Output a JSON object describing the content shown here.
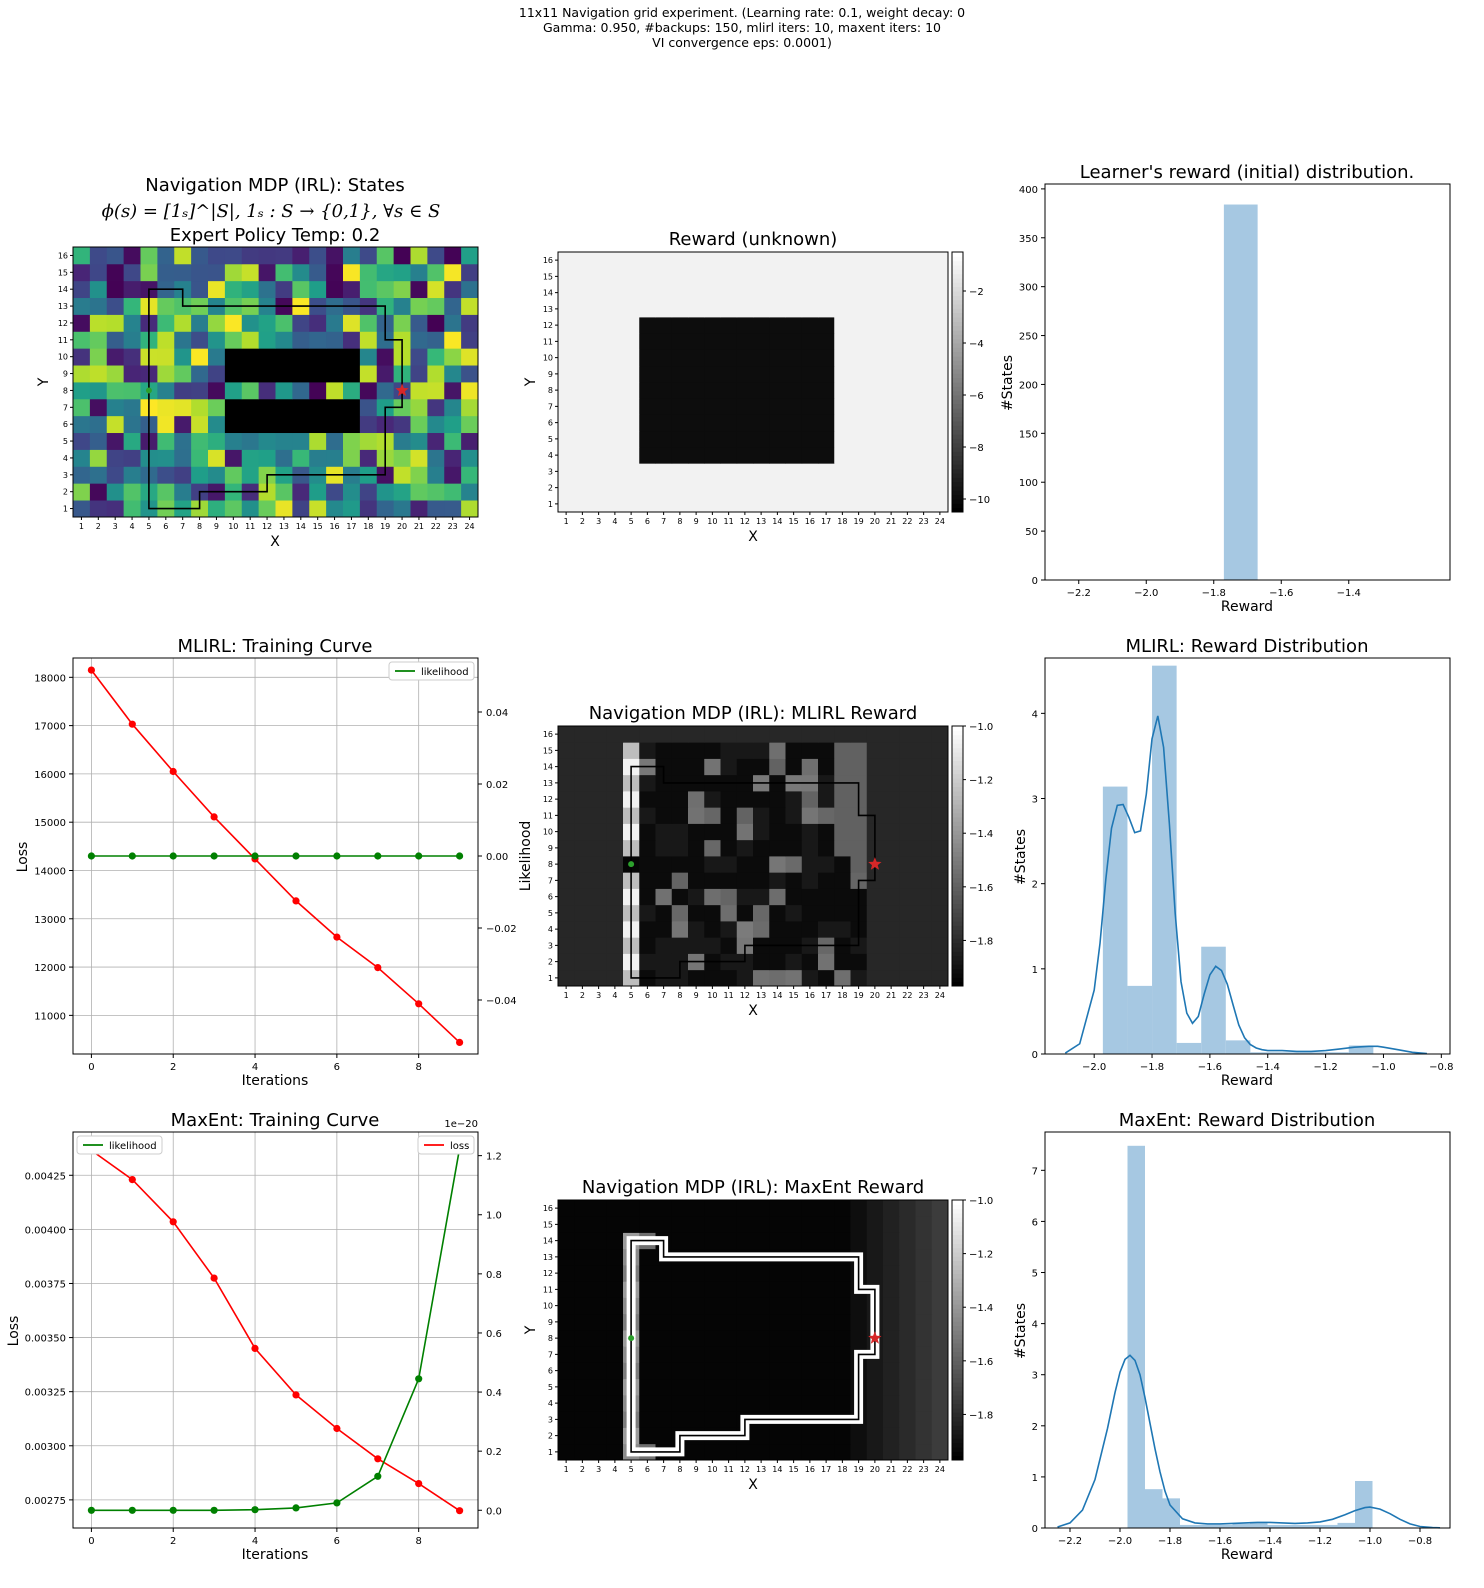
{
  "suptitle": {
    "line1": "11x11 Navigation grid experiment. (Learning rate: 0.1, weight decay: 0",
    "line2": "Gamma: 0.950, #backups: 150, mlirl iters: 10, maxent iters: 10",
    "line3": "VI convergence eps: 0.0001)"
  },
  "colors": {
    "hist": "#a6c8e2",
    "kde": "#1f77b4",
    "loss": "#ff0000",
    "likelihood": "#008000",
    "grid_line": "#b0b0b0",
    "agent": "#2ca02c",
    "goal": "#d62728"
  },
  "chart_data": [
    {
      "id": "states",
      "type": "heatmap",
      "title_lines": [
        "Navigation MDP (IRL): States",
        "ϕ(s) = [1ₛ]^|S|, 1ₛ : S → {0,1}, ∀s ∈ S",
        "Expert Policy Temp: 0.2"
      ],
      "xlabel": "X",
      "ylabel": "Y",
      "x_ticks": [
        1,
        2,
        3,
        4,
        5,
        6,
        7,
        8,
        9,
        10,
        11,
        12,
        13,
        14,
        15,
        16,
        17,
        18,
        19,
        20,
        21,
        22,
        23,
        24
      ],
      "y_ticks": [
        1,
        2,
        3,
        4,
        5,
        6,
        7,
        8,
        9,
        10,
        11,
        12,
        13,
        14,
        15,
        16
      ],
      "colormap": "viridis",
      "blocked_regions": [
        {
          "x": [
            10,
            17
          ],
          "y": [
            9,
            10
          ]
        },
        {
          "x": [
            10,
            17
          ],
          "y": [
            6,
            7
          ]
        }
      ],
      "path": [
        [
          5,
          8
        ],
        [
          5,
          14
        ],
        [
          7,
          14
        ],
        [
          7,
          13
        ],
        [
          19,
          13
        ],
        [
          19,
          11
        ],
        [
          20,
          11
        ],
        [
          20,
          8
        ]
      ],
      "path2": [
        [
          5,
          8
        ],
        [
          5,
          1
        ],
        [
          8,
          1
        ],
        [
          8,
          2
        ],
        [
          12,
          2
        ],
        [
          12,
          3
        ],
        [
          19,
          3
        ],
        [
          19,
          7
        ],
        [
          20,
          7
        ],
        [
          20,
          8
        ]
      ],
      "agent": [
        5,
        8
      ],
      "goal": [
        20,
        8
      ]
    },
    {
      "id": "reward_unknown",
      "type": "heatmap",
      "title": "Reward (unknown)",
      "xlabel": "X",
      "ylabel": "Y",
      "colormap": "gray",
      "colorbar_ticks": [
        -2,
        -4,
        -6,
        -8,
        -10
      ],
      "vmin": -10.5,
      "vmax": -0.5,
      "low_region": {
        "x": [
          6,
          17
        ],
        "y": [
          4,
          12
        ],
        "value": -10
      },
      "background_value": -1
    },
    {
      "id": "initial_hist",
      "type": "bar",
      "title": "Learner's reward (initial) distribution.",
      "xlabel": "Reward",
      "ylabel": "#States",
      "xlim": [
        -2.3,
        -1.1
      ],
      "ylim": [
        0,
        405
      ],
      "x_ticks": [
        -2.2,
        -2.0,
        -1.8,
        -1.6,
        -1.4
      ],
      "y_ticks": [
        0,
        50,
        100,
        150,
        200,
        250,
        300,
        350,
        400
      ],
      "bins": [
        [
          -1.77,
          -1.67,
          384
        ]
      ]
    },
    {
      "id": "mlirl_curve",
      "type": "line",
      "title": "MLIRL: Training Curve",
      "xlabel": "Iterations",
      "ylabel": "Loss",
      "ylabel_right": "Likelihood",
      "x": [
        0,
        1,
        2,
        3,
        4,
        5,
        6,
        7,
        8,
        9
      ],
      "xlim": [
        -0.45,
        9.45
      ],
      "ylim": [
        10200,
        18400
      ],
      "ylim_right": [
        -0.055,
        0.055
      ],
      "x_ticks": [
        0,
        2,
        4,
        6,
        8
      ],
      "y_ticks": [
        11000,
        12000,
        13000,
        14000,
        15000,
        16000,
        17000,
        18000
      ],
      "y_ticks_right": [
        -0.04,
        -0.02,
        0.0,
        0.02,
        0.04
      ],
      "y_tick_labels_right": [
        "−0.04",
        "−0.02",
        "0.00",
        "0.02",
        "0.04"
      ],
      "legend": [
        "likelihood"
      ],
      "series": [
        {
          "name": "loss",
          "axis": "left",
          "color": "#ff0000",
          "values": [
            18150,
            17030,
            16050,
            15110,
            14240,
            13370,
            12620,
            11990,
            11240,
            10440
          ]
        },
        {
          "name": "likelihood",
          "axis": "right",
          "color": "#008000",
          "values": [
            0,
            0,
            0,
            0,
            0,
            0,
            0,
            0,
            0,
            0
          ]
        }
      ]
    },
    {
      "id": "mlirl_reward",
      "type": "heatmap",
      "title": "Navigation MDP (IRL): MLIRL Reward",
      "xlabel": "X",
      "ylabel": "Likelihood",
      "colormap": "gray",
      "colorbar_ticks": [
        -1.0,
        -1.2,
        -1.4,
        -1.6,
        -1.8
      ],
      "colorbar_tick_labels": [
        "−1.0",
        "−1.2",
        "−1.4",
        "−1.6",
        "−1.8"
      ],
      "vmin": -1.97,
      "vmax": -1.0,
      "background_value": -1.82,
      "path": [
        [
          5,
          8
        ],
        [
          5,
          14
        ],
        [
          7,
          14
        ],
        [
          7,
          13
        ],
        [
          19,
          13
        ],
        [
          19,
          11
        ],
        [
          20,
          11
        ],
        [
          20,
          8
        ]
      ],
      "path2": [
        [
          5,
          8
        ],
        [
          5,
          1
        ],
        [
          8,
          1
        ],
        [
          8,
          2
        ],
        [
          12,
          2
        ],
        [
          12,
          3
        ],
        [
          19,
          3
        ],
        [
          19,
          7
        ],
        [
          20,
          7
        ],
        [
          20,
          8
        ]
      ],
      "agent": [
        5,
        8
      ],
      "goal": [
        20,
        8
      ]
    },
    {
      "id": "mlirl_hist",
      "type": "bar",
      "title": "MLIRL: Reward Distribution",
      "xlabel": "Reward",
      "ylabel": "#States",
      "xlim": [
        -2.17,
        -0.77
      ],
      "ylim": [
        0,
        4.65
      ],
      "x_ticks": [
        -2.0,
        -1.8,
        -1.6,
        -1.4,
        -1.2,
        -1.0,
        -0.8
      ],
      "x_tick_labels": [
        "−2.0",
        "−1.8",
        "−1.6",
        "−1.4",
        "−1.2",
        "−1.0",
        "−0.8"
      ],
      "y_ticks": [
        0,
        1,
        2,
        3,
        4
      ],
      "bins": [
        [
          -1.97,
          -1.885,
          3.14
        ],
        [
          -1.885,
          -1.8,
          0.8
        ],
        [
          -1.8,
          -1.715,
          4.56
        ],
        [
          -1.715,
          -1.63,
          0.13
        ],
        [
          -1.63,
          -1.545,
          1.26
        ],
        [
          -1.545,
          -1.46,
          0.16
        ],
        [
          -1.46,
          -1.375,
          0.02
        ],
        [
          -1.375,
          -1.29,
          0.02
        ],
        [
          -1.29,
          -1.205,
          0.02
        ],
        [
          -1.205,
          -1.12,
          0.02
        ],
        [
          -1.12,
          -1.035,
          0.1
        ]
      ],
      "kde": {
        "x": [
          -2.1,
          -2.05,
          -2.0,
          -1.98,
          -1.96,
          -1.94,
          -1.92,
          -1.9,
          -1.88,
          -1.86,
          -1.84,
          -1.82,
          -1.8,
          -1.78,
          -1.76,
          -1.74,
          -1.72,
          -1.7,
          -1.68,
          -1.66,
          -1.64,
          -1.62,
          -1.6,
          -1.58,
          -1.56,
          -1.54,
          -1.52,
          -1.5,
          -1.48,
          -1.46,
          -1.44,
          -1.42,
          -1.4,
          -1.35,
          -1.3,
          -1.25,
          -1.2,
          -1.15,
          -1.1,
          -1.05,
          -1.02,
          -1.0,
          -0.95,
          -0.9,
          -0.85
        ],
        "y": [
          0.01,
          0.12,
          0.75,
          1.3,
          2.05,
          2.65,
          2.92,
          2.93,
          2.78,
          2.6,
          2.62,
          3.05,
          3.7,
          3.97,
          3.6,
          2.7,
          1.65,
          0.85,
          0.48,
          0.36,
          0.44,
          0.7,
          0.93,
          1.03,
          0.98,
          0.82,
          0.58,
          0.34,
          0.19,
          0.11,
          0.07,
          0.05,
          0.04,
          0.04,
          0.03,
          0.03,
          0.04,
          0.06,
          0.08,
          0.09,
          0.09,
          0.08,
          0.05,
          0.02,
          0.005
        ]
      }
    },
    {
      "id": "maxent_curve",
      "type": "line",
      "title": "MaxEnt: Training Curve",
      "xlabel": "Iterations",
      "ylabel": "Loss",
      "ylabel_right": "Likelihood",
      "offset_text": "1e−20",
      "x": [
        0,
        1,
        2,
        3,
        4,
        5,
        6,
        7,
        8,
        9
      ],
      "xlim": [
        -0.45,
        9.45
      ],
      "ylim": [
        0.00262,
        0.00445
      ],
      "ylim_right": [
        -0.06,
        1.28
      ],
      "x_ticks": [
        0,
        2,
        4,
        6,
        8
      ],
      "y_ticks": [
        0.00275,
        0.003,
        0.00325,
        0.0035,
        0.00375,
        0.004,
        0.00425
      ],
      "y_ticks_right": [
        0.0,
        0.2,
        0.4,
        0.6,
        0.8,
        1.0,
        1.2
      ],
      "legend": [
        "likelihood",
        "loss"
      ],
      "series": [
        {
          "name": "loss",
          "axis": "left",
          "color": "#ff0000",
          "values": [
            0.004365,
            0.00423,
            0.004035,
            0.003775,
            0.00345,
            0.003235,
            0.00308,
            0.00294,
            0.002825,
            0.0027
          ]
        },
        {
          "name": "likelihood",
          "axis": "right",
          "color": "#008000",
          "values": [
            0.0,
            0.0,
            0.0,
            0.0,
            0.002,
            0.008,
            0.025,
            0.115,
            0.445,
            1.225
          ]
        }
      ]
    },
    {
      "id": "maxent_reward",
      "type": "heatmap",
      "title": "Navigation MDP (IRL): MaxEnt Reward",
      "xlabel": "X",
      "ylabel": "Y",
      "colormap": "gray",
      "colorbar_ticks": [
        -1.0,
        -1.2,
        -1.4,
        -1.6,
        -1.8
      ],
      "colorbar_tick_labels": [
        "−1.0",
        "−1.2",
        "−1.4",
        "−1.6",
        "−1.8"
      ],
      "vmin": -1.97,
      "vmax": -1.0,
      "background_value": -1.95,
      "path": [
        [
          5,
          8
        ],
        [
          5,
          14
        ],
        [
          7,
          14
        ],
        [
          7,
          13
        ],
        [
          19,
          13
        ],
        [
          19,
          11
        ],
        [
          20,
          11
        ],
        [
          20,
          8
        ]
      ],
      "path2": [
        [
          5,
          8
        ],
        [
          5,
          1
        ],
        [
          8,
          1
        ],
        [
          8,
          2
        ],
        [
          12,
          2
        ],
        [
          12,
          3
        ],
        [
          19,
          3
        ],
        [
          19,
          7
        ],
        [
          20,
          7
        ],
        [
          20,
          8
        ]
      ],
      "agent": [
        5,
        8
      ],
      "goal": [
        20,
        8
      ]
    },
    {
      "id": "maxent_hist",
      "type": "bar",
      "title": "MaxEnt: Reward Distribution",
      "xlabel": "Reward",
      "ylabel": "#States",
      "xlim": [
        -2.3,
        -0.68
      ],
      "ylim": [
        0,
        7.75
      ],
      "x_ticks": [
        -2.2,
        -2.0,
        -1.8,
        -1.6,
        -1.4,
        -1.2,
        -1.0,
        -0.8
      ],
      "x_tick_labels": [
        "−2.2",
        "−2.0",
        "−1.8",
        "−1.6",
        "−1.4",
        "−1.2",
        "−1.0",
        "−0.8"
      ],
      "y_ticks": [
        0,
        1,
        2,
        3,
        4,
        5,
        6,
        7
      ],
      "bins": [
        [
          -1.97,
          -1.9,
          7.48
        ],
        [
          -1.9,
          -1.83,
          0.76
        ],
        [
          -1.83,
          -1.76,
          0.58
        ],
        [
          -1.76,
          -1.69,
          0.06
        ],
        [
          -1.69,
          -1.62,
          0.06
        ],
        [
          -1.62,
          -1.55,
          0.06
        ],
        [
          -1.55,
          -1.48,
          0.08
        ],
        [
          -1.48,
          -1.41,
          0.12
        ],
        [
          -1.41,
          -1.34,
          0.06
        ],
        [
          -1.34,
          -1.27,
          0.06
        ],
        [
          -1.27,
          -1.2,
          0.06
        ],
        [
          -1.2,
          -1.13,
          0.06
        ],
        [
          -1.13,
          -1.06,
          0.1
        ],
        [
          -1.06,
          -0.99,
          0.92
        ]
      ],
      "kde": {
        "x": [
          -2.25,
          -2.2,
          -2.15,
          -2.1,
          -2.05,
          -2.02,
          -2.0,
          -1.98,
          -1.96,
          -1.94,
          -1.92,
          -1.9,
          -1.88,
          -1.86,
          -1.84,
          -1.82,
          -1.8,
          -1.75,
          -1.7,
          -1.65,
          -1.6,
          -1.55,
          -1.5,
          -1.45,
          -1.4,
          -1.35,
          -1.3,
          -1.25,
          -1.2,
          -1.15,
          -1.1,
          -1.06,
          -1.02,
          -1.0,
          -0.96,
          -0.92,
          -0.88,
          -0.84,
          -0.8,
          -0.75,
          -0.72
        ],
        "y": [
          0.02,
          0.1,
          0.35,
          0.95,
          1.95,
          2.65,
          3.05,
          3.3,
          3.38,
          3.28,
          3.0,
          2.55,
          2.05,
          1.55,
          1.1,
          0.72,
          0.45,
          0.18,
          0.1,
          0.08,
          0.08,
          0.09,
          0.1,
          0.11,
          0.11,
          0.1,
          0.09,
          0.1,
          0.12,
          0.17,
          0.26,
          0.34,
          0.4,
          0.41,
          0.37,
          0.28,
          0.17,
          0.08,
          0.03,
          0.01,
          0.004
        ]
      }
    }
  ]
}
